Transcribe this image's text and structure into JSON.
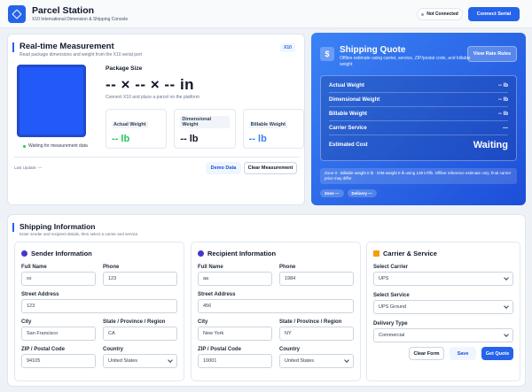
{
  "header": {
    "title": "Parcel Station",
    "subtitle": "X10 International Dimension & Shipping Console",
    "status": "Not Connected",
    "connect_button": "Connect Serial"
  },
  "measurement": {
    "title": "Real-time Measurement",
    "subtitle": "Read package dimensions and weight from the X10 serial port",
    "badge": "X10",
    "package_size_label": "Package Size",
    "dimensions": "-- × -- × -- in",
    "hint": "Connect X10 and place a parcel on the platform",
    "metrics": [
      {
        "label": "Actual Weight",
        "value": "-- lb"
      },
      {
        "label": "Dimensional Weight",
        "value": "-- lb"
      },
      {
        "label": "Billable Weight",
        "value": "-- lb"
      }
    ],
    "status": "Waiting for measurement data",
    "last_update": "Last Update: —",
    "buttons": [
      "Demo Data",
      "Clear Measurement"
    ]
  },
  "quote": {
    "icon": "$",
    "title": "Shipping Quote",
    "subtitle": "Offline estimate using carrier, service, ZIP/postal code, and billable weight",
    "rules_button": "View Rate Rules",
    "rows": [
      {
        "label": "Actual Weight",
        "value": "-- lb"
      },
      {
        "label": "Dimensional Weight",
        "value": "-- lb"
      },
      {
        "label": "Billable Weight",
        "value": "-- lb"
      },
      {
        "label": "Carrier Service",
        "value": "—"
      }
    ],
    "estimated_cost_label": "Estimated Cost",
    "estimated_cost": "Waiting",
    "note": "Zone 0 · Billable weight 0 lb · DIM weight 0 lb using 139 in³/lb. Offline reference estimate only; final carrier price may differ.",
    "chips": [
      "Zone —",
      "Delivery —"
    ]
  },
  "shipping": {
    "title": "Shipping Information",
    "subtitle": "Enter sender and recipient details, then select a carrier and service",
    "sender": {
      "title": "Sender Information",
      "fields": [
        {
          "label": "Full Name",
          "value": "xx"
        },
        {
          "label": "Phone",
          "value": "123"
        },
        {
          "label": "Street Address",
          "value": "123"
        },
        {
          "label": "City",
          "value": "San Francisco"
        },
        {
          "label": "State / Province / Region",
          "value": "CA"
        },
        {
          "label": "ZIP / Postal Code",
          "value": "94105"
        },
        {
          "label": "Country",
          "value": "United States"
        }
      ]
    },
    "recipient": {
      "title": "Recipient Information",
      "fields": [
        {
          "label": "Full Name",
          "value": "aa"
        },
        {
          "label": "Phone",
          "value": "1984"
        },
        {
          "label": "Street Address",
          "value": "456"
        },
        {
          "label": "City",
          "value": "New York"
        },
        {
          "label": "State / Province / Region",
          "value": "NY"
        },
        {
          "label": "ZIP / Postal Code",
          "value": "10001"
        },
        {
          "label": "Country",
          "value": "United States"
        }
      ]
    },
    "carrier": {
      "title": "Carrier & Service",
      "fields": [
        {
          "label": "Select Carrier",
          "value": "UPS"
        },
        {
          "label": "Select Service",
          "value": "UPS Ground"
        },
        {
          "label": "Delivery Type",
          "value": "Commercial"
        }
      ],
      "buttons": [
        "Clear Form",
        "Save",
        "Get Quote"
      ]
    }
  }
}
